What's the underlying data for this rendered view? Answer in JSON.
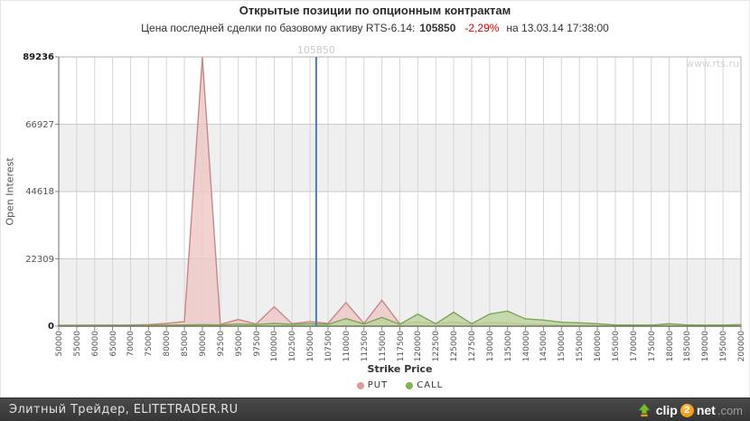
{
  "header": {
    "title": "Открытые позиции по опционным контрактам",
    "subtitle_prefix": "Цена последней сделки по базовому активу RTS-6.14:",
    "last_price": "105850",
    "change_pct": "-2,29%",
    "subtitle_suffix": "на 13.03.14 17:38:00"
  },
  "watermark": "www.rts.ru",
  "price_line": {
    "value": 105850,
    "label": "105850",
    "color": "#4a7ebb"
  },
  "chart_data": {
    "type": "area",
    "title": "Открытые позиции по опционным контрактам",
    "xlabel": "Strike Price",
    "ylabel": "Open Interest",
    "ylim": [
      0,
      89236
    ],
    "y_ticks": [
      0,
      22309,
      44618,
      66927,
      89236
    ],
    "grid": true,
    "legend_position": "bottom",
    "band_color": "#efefef",
    "categories": [
      50000,
      55000,
      60000,
      65000,
      70000,
      75000,
      80000,
      85000,
      90000,
      92500,
      95000,
      97500,
      100000,
      102500,
      105000,
      107500,
      110000,
      112500,
      115000,
      117500,
      120000,
      122500,
      125000,
      127500,
      130000,
      135000,
      140000,
      145000,
      150000,
      155000,
      160000,
      165000,
      170000,
      175000,
      180000,
      185000,
      190000,
      195000,
      200000
    ],
    "series": [
      {
        "name": "PUT",
        "fill": "#efc7c5",
        "stroke": "#c68886",
        "marker": "#e09c9b",
        "values": [
          300,
          300,
          350,
          350,
          400,
          500,
          900,
          1500,
          89236,
          600,
          2200,
          700,
          6400,
          800,
          1500,
          900,
          7800,
          900,
          8600,
          700,
          1400,
          700,
          1400,
          600,
          1200,
          1000,
          700,
          500,
          400,
          400,
          350,
          300,
          300,
          300,
          350,
          300,
          300,
          300,
          350
        ]
      },
      {
        "name": "CALL",
        "fill": "#b9d49c",
        "stroke": "#7da555",
        "marker": "#84b257",
        "values": [
          150,
          150,
          200,
          200,
          200,
          250,
          300,
          400,
          500,
          400,
          700,
          500,
          900,
          600,
          800,
          600,
          2500,
          700,
          2900,
          600,
          4000,
          800,
          4600,
          800,
          4000,
          5000,
          2400,
          2000,
          1300,
          1100,
          800,
          400,
          350,
          300,
          800,
          400,
          300,
          350,
          500
        ]
      }
    ]
  },
  "footer": {
    "left_text": "Элитный Трейдер, ELITETRADER.RU",
    "logo": {
      "clip": "clip",
      "two": "2",
      "net": "net",
      "dotcom": ".com"
    }
  }
}
